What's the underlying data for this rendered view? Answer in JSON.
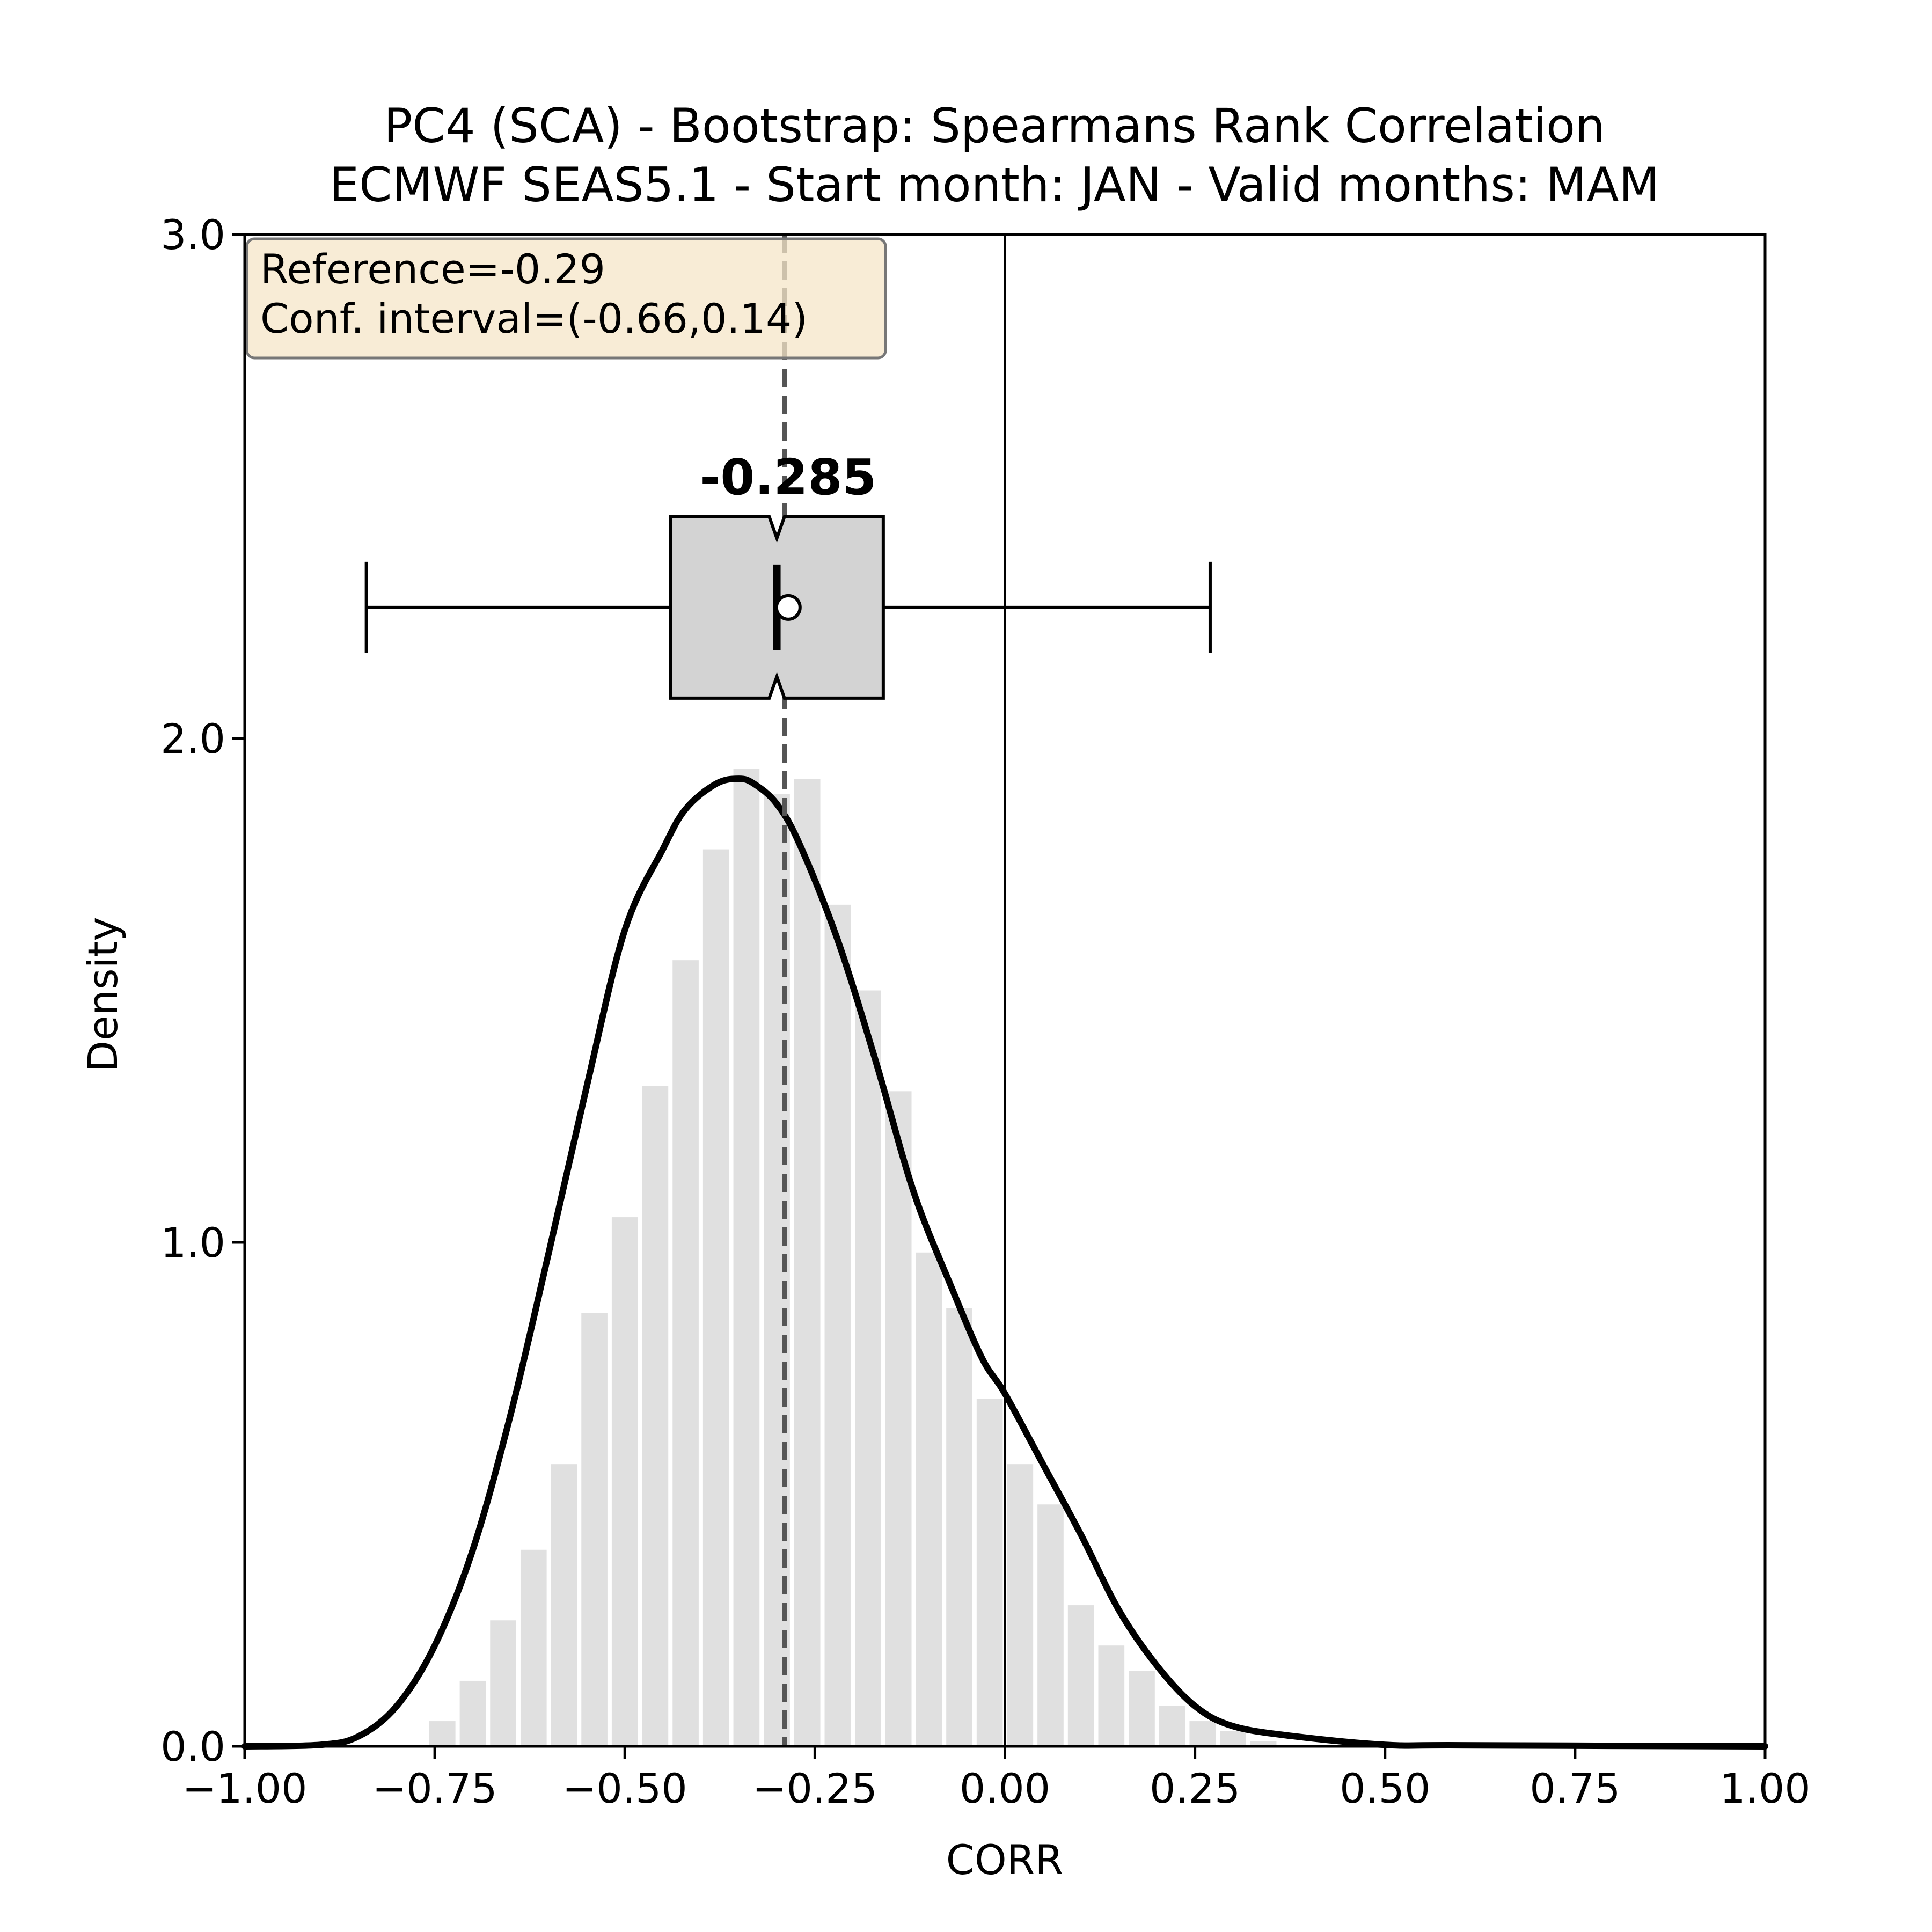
{
  "chart_data": {
    "type": "histogram",
    "title_line1": "PC4 (SCA) - Bootstrap: Spearmans Rank Correlation",
    "title_line2": "ECMWF SEAS5.1 - Start month: JAN - Valid months: MAM",
    "xlabel": "CORR",
    "ylabel": "Density",
    "xlim": [
      -1.0,
      1.0
    ],
    "ylim": [
      0.0,
      3.0
    ],
    "xticks": [
      -1.0,
      -0.75,
      -0.5,
      -0.25,
      0.0,
      0.25,
      0.5,
      0.75,
      1.0
    ],
    "xtick_labels": [
      "−1.00",
      "−0.75",
      "−0.50",
      "−0.25",
      "0.00",
      "0.25",
      "0.50",
      "0.75",
      "1.00"
    ],
    "yticks": [
      0.0,
      1.0,
      2.0,
      3.0
    ],
    "ytick_labels": [
      "0.0",
      "1.0",
      "2.0",
      "3.0"
    ],
    "histogram": {
      "bin_edges": [
        -0.76,
        -0.72,
        -0.68,
        -0.64,
        -0.6,
        -0.56,
        -0.52,
        -0.48,
        -0.44,
        -0.4,
        -0.36,
        -0.32,
        -0.28,
        -0.24,
        -0.2,
        -0.16,
        -0.12,
        -0.08,
        -0.04,
        0.0,
        0.04,
        0.08,
        0.12,
        0.16,
        0.2,
        0.24,
        0.28,
        0.32,
        0.36
      ],
      "density": [
        0.05,
        0.13,
        0.25,
        0.39,
        0.56,
        0.86,
        1.05,
        1.31,
        1.56,
        1.78,
        1.94,
        1.89,
        1.92,
        1.67,
        1.5,
        1.3,
        0.98,
        0.87,
        0.69,
        0.56,
        0.48,
        0.28,
        0.2,
        0.15,
        0.08,
        0.05,
        0.03,
        0.01
      ],
      "color": "#e0e0e0"
    },
    "kde": {
      "x": [
        -1.0,
        -0.9,
        -0.85,
        -0.8,
        -0.75,
        -0.7,
        -0.65,
        -0.6,
        -0.55,
        -0.5,
        -0.45,
        -0.42,
        -0.38,
        -0.35,
        -0.33,
        -0.3,
        -0.27,
        -0.22,
        -0.17,
        -0.12,
        -0.07,
        -0.03,
        0.0,
        0.05,
        0.1,
        0.15,
        0.2,
        0.25,
        0.3,
        0.38,
        0.5,
        0.6,
        1.0
      ],
      "y": [
        0.0,
        0.003,
        0.02,
        0.08,
        0.2,
        0.39,
        0.66,
        0.98,
        1.31,
        1.62,
        1.78,
        1.86,
        1.91,
        1.92,
        1.91,
        1.87,
        1.79,
        1.6,
        1.36,
        1.1,
        0.91,
        0.77,
        0.7,
        0.56,
        0.42,
        0.27,
        0.16,
        0.08,
        0.04,
        0.02,
        0.003,
        0.002,
        0.0
      ],
      "color": "#000000"
    },
    "reference_line": {
      "x": -0.29,
      "color": "#555555",
      "style": "dashed"
    },
    "zero_line": {
      "x": 0.0,
      "color": "#000000"
    },
    "boxplot": {
      "y_center": 2.26,
      "y_low": 2.08,
      "y_high": 2.44,
      "q1": -0.44,
      "median": -0.3,
      "q3": -0.16,
      "whisker_low": -0.84,
      "whisker_high": 0.27,
      "mean": -0.285,
      "notch_low": -0.31,
      "notch_high": -0.29,
      "fill": "#d3d3d3",
      "median_label": "-0.285"
    },
    "info_box": {
      "line1": "Reference=-0.29",
      "line2": "Conf. interval=(-0.66,0.14)",
      "fill": "#f5e6c8"
    }
  }
}
